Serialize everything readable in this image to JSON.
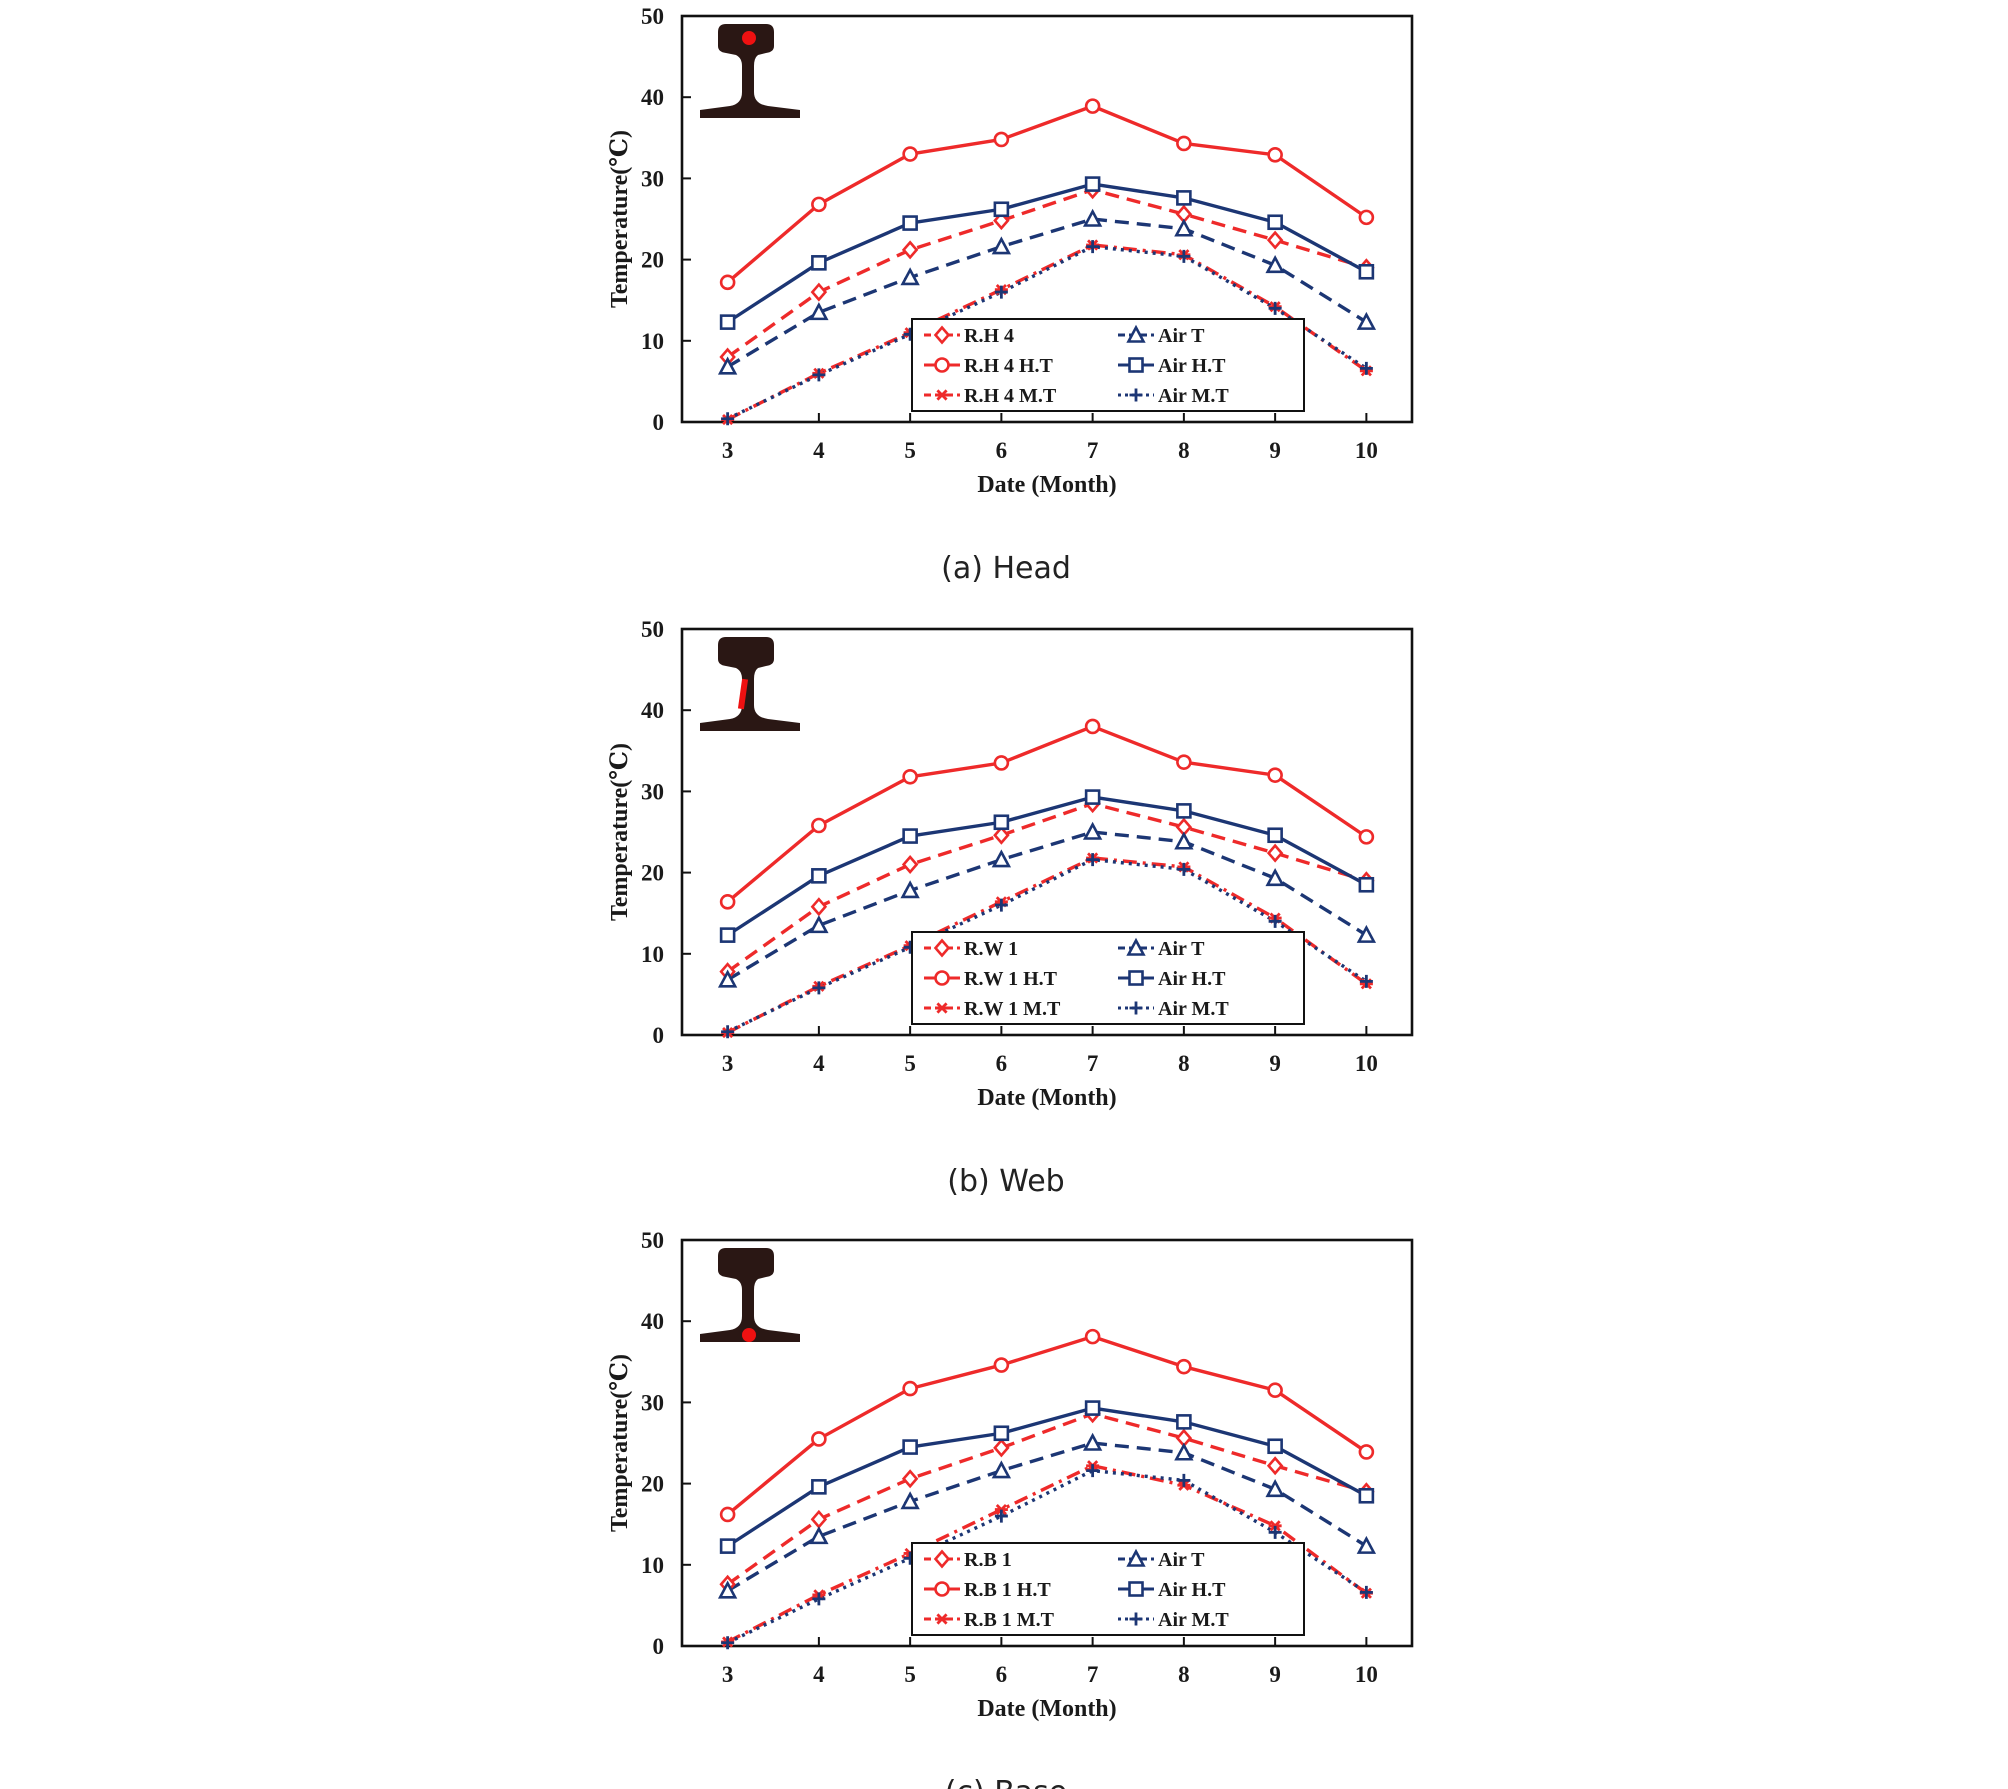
{
  "colors": {
    "red": "#ee2a2a",
    "blue": "#1c3674",
    "rail": "#2a1714",
    "sensor": "#ee1111",
    "frame": "#111111"
  },
  "chart_data": [
    {
      "type": "line",
      "caption": "(a) Head",
      "sensor": "head",
      "xlabel": "Date (Month)",
      "ylabel": "Temperature(℃)",
      "x": [
        3,
        4,
        5,
        6,
        7,
        8,
        9,
        10
      ],
      "xlim": [
        2.5,
        10.5
      ],
      "ylim": [
        0,
        50
      ],
      "yticks": [
        0,
        10,
        20,
        30,
        40,
        50
      ],
      "grid": false,
      "legend": "bottom-center",
      "series": [
        {
          "name": "R.H 4",
          "color": "red",
          "dash": "dashed",
          "marker": "diamond",
          "values": [
            8.0,
            16.0,
            21.2,
            24.8,
            28.6,
            25.6,
            22.4,
            19.0
          ]
        },
        {
          "name": "Air T",
          "color": "blue",
          "dash": "dashed",
          "marker": "triangle",
          "values": [
            6.8,
            13.5,
            17.8,
            21.6,
            25.0,
            23.8,
            19.3,
            12.3
          ]
        },
        {
          "name": "R.H 4 H.T",
          "color": "red",
          "dash": "solid",
          "marker": "circle",
          "values": [
            17.2,
            26.8,
            33.0,
            34.8,
            38.9,
            34.3,
            32.9,
            25.2
          ]
        },
        {
          "name": "Air H.T",
          "color": "blue",
          "dash": "solid",
          "marker": "square",
          "values": [
            12.3,
            19.6,
            24.5,
            26.2,
            29.3,
            27.6,
            24.6,
            18.5
          ]
        },
        {
          "name": "R.H 4 M.T",
          "color": "red",
          "dash": "dashdot",
          "marker": "asterisk",
          "values": [
            0.3,
            6.0,
            11.0,
            16.3,
            21.8,
            20.6,
            14.2,
            6.3
          ]
        },
        {
          "name": "Air M.T",
          "color": "blue",
          "dash": "dotted",
          "marker": "plus",
          "values": [
            0.4,
            5.8,
            10.8,
            16.0,
            21.6,
            20.4,
            14.0,
            6.6
          ]
        }
      ]
    },
    {
      "type": "line",
      "caption": "(b) Web",
      "sensor": "web",
      "xlabel": "Date (Month)",
      "ylabel": "Temperature(℃)",
      "x": [
        3,
        4,
        5,
        6,
        7,
        8,
        9,
        10
      ],
      "xlim": [
        2.5,
        10.5
      ],
      "ylim": [
        0,
        50
      ],
      "yticks": [
        0,
        10,
        20,
        30,
        40,
        50
      ],
      "grid": false,
      "legend": "bottom-center",
      "series": [
        {
          "name": "R.W 1",
          "color": "red",
          "dash": "dashed",
          "marker": "diamond",
          "values": [
            7.8,
            15.8,
            21.0,
            24.6,
            28.5,
            25.6,
            22.4,
            19.0
          ]
        },
        {
          "name": "Air T",
          "color": "blue",
          "dash": "dashed",
          "marker": "triangle",
          "values": [
            6.8,
            13.5,
            17.8,
            21.6,
            25.0,
            23.8,
            19.3,
            12.3
          ]
        },
        {
          "name": "R.W 1 H.T",
          "color": "red",
          "dash": "solid",
          "marker": "circle",
          "values": [
            16.4,
            25.8,
            31.8,
            33.5,
            38.0,
            33.6,
            32.0,
            24.4
          ]
        },
        {
          "name": "Air H.T",
          "color": "blue",
          "dash": "solid",
          "marker": "square",
          "values": [
            12.3,
            19.6,
            24.5,
            26.2,
            29.3,
            27.6,
            24.6,
            18.5
          ]
        },
        {
          "name": "R.W 1 M.T",
          "color": "red",
          "dash": "dashdot",
          "marker": "asterisk",
          "values": [
            0.3,
            6.0,
            11.0,
            16.4,
            21.8,
            20.7,
            14.4,
            6.3
          ]
        },
        {
          "name": "Air M.T",
          "color": "blue",
          "dash": "dotted",
          "marker": "plus",
          "values": [
            0.4,
            5.8,
            10.8,
            16.0,
            21.6,
            20.4,
            14.0,
            6.6
          ]
        }
      ]
    },
    {
      "type": "line",
      "caption": "(c) Base",
      "sensor": "base",
      "xlabel": "Date (Month)",
      "ylabel": "Temperature(℃)",
      "x": [
        3,
        4,
        5,
        6,
        7,
        8,
        9,
        10
      ],
      "xlim": [
        2.5,
        10.5
      ],
      "ylim": [
        0,
        50
      ],
      "yticks": [
        0,
        10,
        20,
        30,
        40,
        50
      ],
      "grid": false,
      "legend": "bottom-center",
      "series": [
        {
          "name": "R.B 1",
          "color": "red",
          "dash": "dashed",
          "marker": "diamond",
          "values": [
            7.6,
            15.6,
            20.6,
            24.4,
            28.6,
            25.6,
            22.2,
            19.0
          ]
        },
        {
          "name": "Air T",
          "color": "blue",
          "dash": "dashed",
          "marker": "triangle",
          "values": [
            6.8,
            13.5,
            17.8,
            21.6,
            25.0,
            23.8,
            19.3,
            12.3
          ]
        },
        {
          "name": "R.B 1 H.T",
          "color": "red",
          "dash": "solid",
          "marker": "circle",
          "values": [
            16.2,
            25.5,
            31.7,
            34.6,
            38.1,
            34.4,
            31.5,
            23.9
          ]
        },
        {
          "name": "Air H.T",
          "color": "blue",
          "dash": "solid",
          "marker": "square",
          "values": [
            12.3,
            19.6,
            24.5,
            26.2,
            29.3,
            27.6,
            24.6,
            18.5
          ]
        },
        {
          "name": "R.B 1 M.T",
          "color": "red",
          "dash": "dashdot",
          "marker": "asterisk",
          "values": [
            0.5,
            6.3,
            11.4,
            16.8,
            22.2,
            19.8,
            14.8,
            6.5
          ]
        },
        {
          "name": "Air M.T",
          "color": "blue",
          "dash": "dotted",
          "marker": "plus",
          "values": [
            0.4,
            5.8,
            10.8,
            16.0,
            21.6,
            20.4,
            14.0,
            6.6
          ]
        }
      ]
    }
  ]
}
